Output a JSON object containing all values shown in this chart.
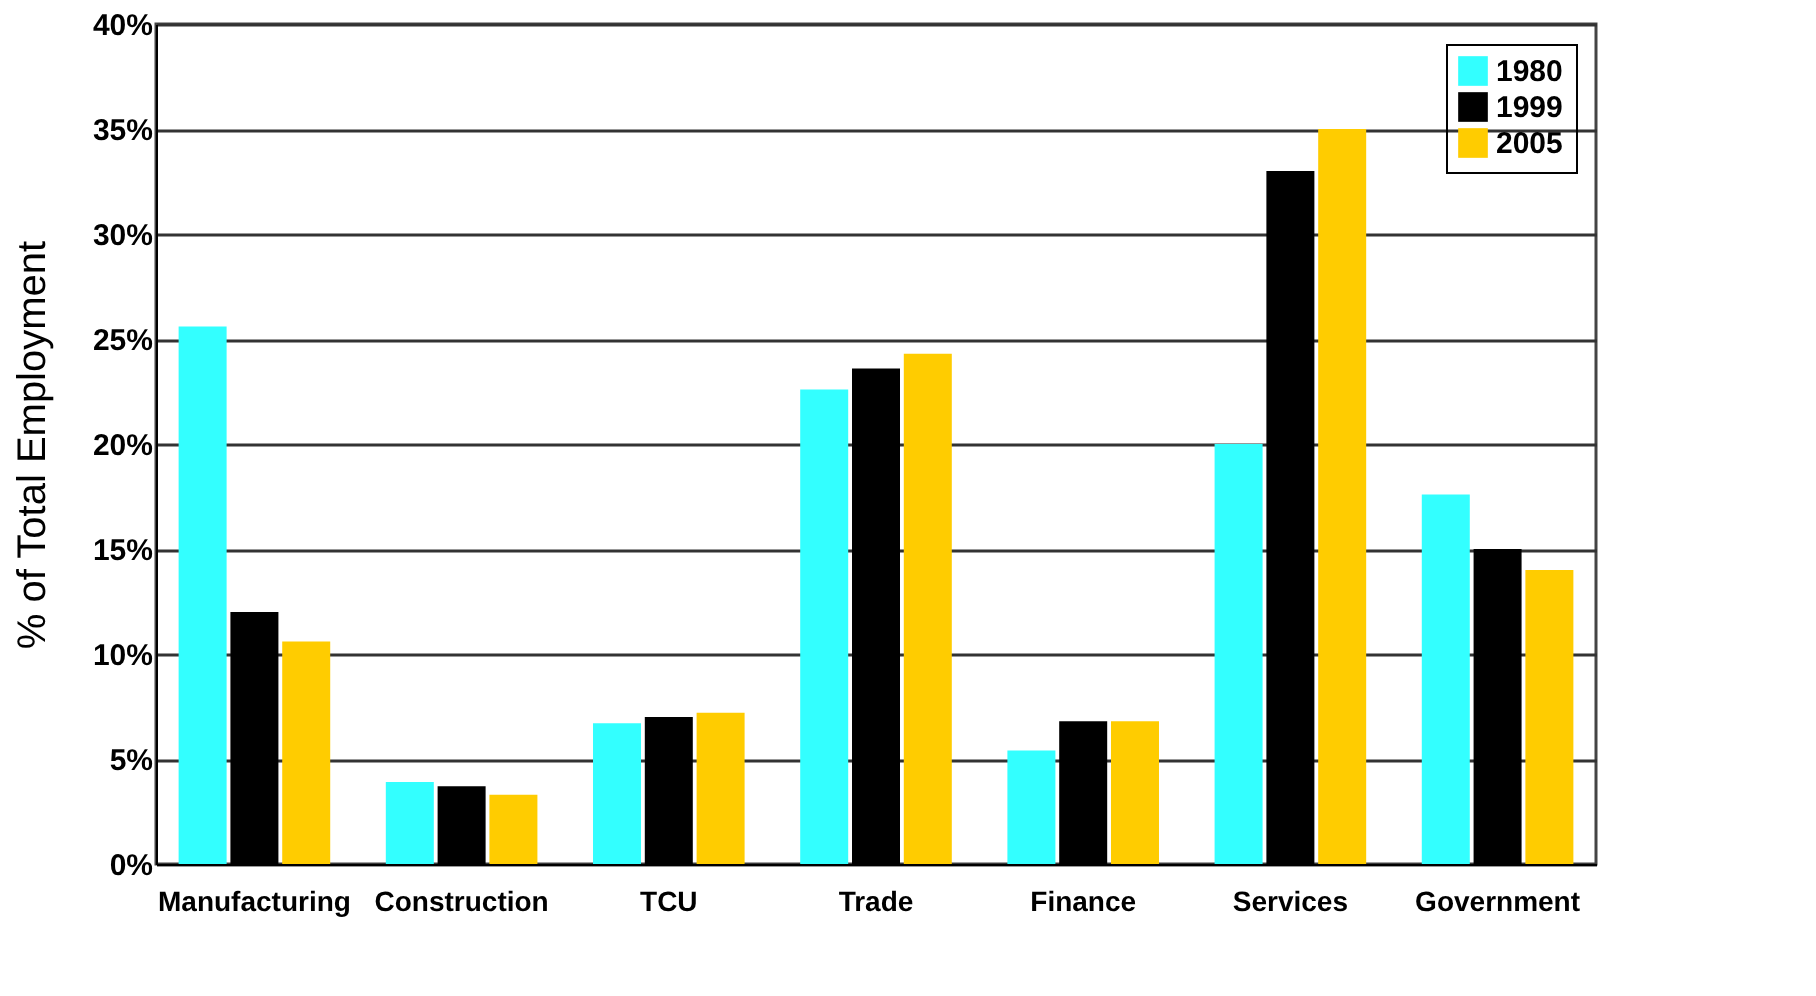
{
  "chart_data": {
    "type": "bar",
    "ylabel": "% of Total Employment",
    "categories": [
      "Manufacturing",
      "Construction",
      "TCU",
      "Trade",
      "Finance",
      "Services",
      "Government"
    ],
    "series": [
      {
        "name": "1980",
        "color": "#33ffff",
        "values": [
          25.6,
          3.9,
          6.7,
          22.6,
          5.4,
          20.0,
          17.6
        ]
      },
      {
        "name": "1999",
        "color": "#000000",
        "values": [
          12.0,
          3.7,
          7.0,
          23.6,
          6.8,
          33.0,
          15.0
        ]
      },
      {
        "name": "2005",
        "color": "#ffcc00",
        "values": [
          10.6,
          3.3,
          7.2,
          24.3,
          6.8,
          35.0,
          14.0
        ]
      }
    ],
    "ylim": [
      0,
      40
    ],
    "yticks": [
      {
        "value": 0,
        "label": "0%"
      },
      {
        "value": 5,
        "label": "5%"
      },
      {
        "value": 10,
        "label": "10%"
      },
      {
        "value": 15,
        "label": "15%"
      },
      {
        "value": 20,
        "label": "20%"
      },
      {
        "value": 25,
        "label": "25%"
      },
      {
        "value": 30,
        "label": "30%"
      },
      {
        "value": 35,
        "label": "35%"
      },
      {
        "value": 40,
        "label": "40%"
      }
    ],
    "grid": "y",
    "legend": "top right"
  }
}
